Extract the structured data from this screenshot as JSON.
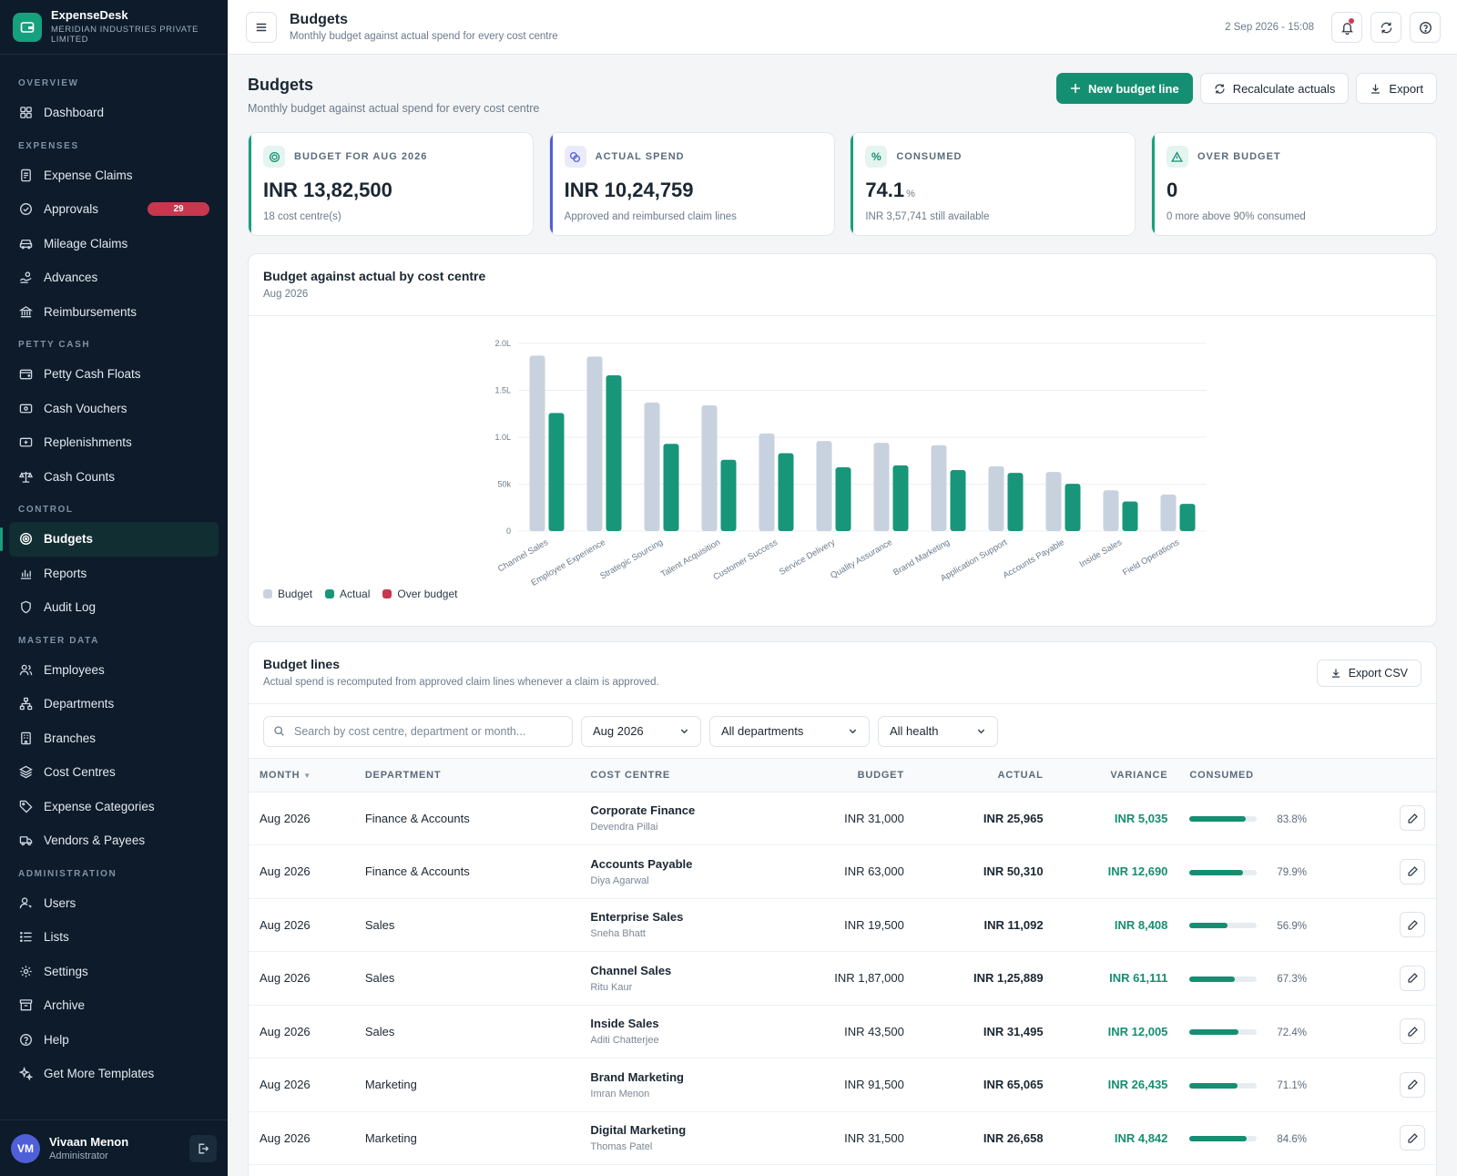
{
  "brand": {
    "name": "ExpenseDesk",
    "org": "Meridian Industries Private Limited"
  },
  "nav": {
    "sections": {
      "overview": "Overview",
      "expenses": "Expenses",
      "petty_cash": "Petty Cash",
      "control": "Control",
      "master_data": "Master Data",
      "administration": "Administration"
    },
    "items": {
      "dashboard": "Dashboard",
      "expense_claims": "Expense Claims",
      "approvals": "Approvals",
      "approvals_badge": "29",
      "mileage_claims": "Mileage Claims",
      "advances": "Advances",
      "reimbursements": "Reimbursements",
      "petty_cash_floats": "Petty Cash Floats",
      "cash_vouchers": "Cash Vouchers",
      "replenishments": "Replenishments",
      "cash_counts": "Cash Counts",
      "budgets": "Budgets",
      "reports": "Reports",
      "audit_log": "Audit Log",
      "employees": "Employees",
      "departments": "Departments",
      "branches": "Branches",
      "cost_centres": "Cost Centres",
      "expense_categories": "Expense Categories",
      "vendors_payees": "Vendors & Payees",
      "users": "Users",
      "lists": "Lists",
      "settings": "Settings",
      "archive": "Archive",
      "help": "Help",
      "get_more_templates": "Get More Templates"
    }
  },
  "user": {
    "initials": "VM",
    "name": "Vivaan Menon",
    "role": "Administrator"
  },
  "topbar": {
    "title": "Budgets",
    "subtitle": "Monthly budget against actual spend for every cost centre",
    "datetime": "2 Sep 2026 - 15:08"
  },
  "page": {
    "title": "Budgets",
    "subtitle": "Monthly budget against actual spend for every cost centre",
    "new_budget_line": "New budget line",
    "recalculate": "Recalculate actuals",
    "export": "Export"
  },
  "kpis": {
    "budget": {
      "label": "Budget for Aug 2026",
      "value": "INR 13,82,500",
      "note": "18 cost centre(s)"
    },
    "actual": {
      "label": "Actual spend",
      "value": "INR 10,24,759",
      "note": "Approved and reimbursed claim lines"
    },
    "consumed": {
      "label": "Consumed",
      "value": "74.1",
      "unit": "%",
      "note": "INR 3,57,741 still available"
    },
    "over": {
      "label": "Over budget",
      "value": "0",
      "note": "0 more above 90% consumed"
    }
  },
  "chart_card": {
    "title": "Budget against actual by cost centre",
    "subtitle": "Aug 2026"
  },
  "chart_data": {
    "type": "bar",
    "categories": [
      "Channel Sales",
      "Employee Experience",
      "Strategic Sourcing",
      "Talent Acquisition",
      "Customer Success",
      "Service Delivery",
      "Quality Assurance",
      "Brand Marketing",
      "Application Support",
      "Accounts Payable",
      "Inside Sales",
      "Field Operations"
    ],
    "series": [
      {
        "name": "Budget",
        "color": "#c8d2de",
        "values": [
          187000,
          186000,
          137000,
          134000,
          104000,
          96000,
          94000,
          91500,
          69000,
          63000,
          43500,
          39000
        ]
      },
      {
        "name": "Actual",
        "color": "#17967a",
        "values": [
          125889,
          166000,
          93000,
          76000,
          83000,
          68000,
          70000,
          65065,
          62000,
          50310,
          31495,
          29000
        ]
      }
    ],
    "legend": [
      {
        "name": "Budget",
        "color": "#c8d2de"
      },
      {
        "name": "Actual",
        "color": "#17967a"
      },
      {
        "name": "Over budget",
        "color": "#c8374d"
      }
    ],
    "yticks": [
      {
        "value": 0,
        "label": "0"
      },
      {
        "value": 50000,
        "label": "50k"
      },
      {
        "value": 100000,
        "label": "1.0L"
      },
      {
        "value": 150000,
        "label": "1.5L"
      },
      {
        "value": 200000,
        "label": "2.0L"
      }
    ],
    "ylim": [
      0,
      200000
    ],
    "grid": true,
    "legend_position": "bottom-left"
  },
  "table": {
    "title": "Budget lines",
    "subtitle": "Actual spend is recomputed from approved claim lines whenever a claim is approved.",
    "export_csv": "Export CSV",
    "search_placeholder": "Search by cost centre, department or month...",
    "filters": {
      "month": "Aug 2026",
      "department": "All departments",
      "health": "All health"
    },
    "columns": {
      "month": "MONTH",
      "department": "DEPARTMENT",
      "cost_centre": "COST CENTRE",
      "budget": "BUDGET",
      "actual": "ACTUAL",
      "variance": "VARIANCE",
      "consumed": "CONSUMED"
    },
    "rows": [
      {
        "month": "Aug 2026",
        "department": "Finance & Accounts",
        "cost_centre": "Corporate Finance",
        "owner": "Devendra Pillai",
        "budget": "INR 31,000",
        "actual": "INR 25,965",
        "variance": "INR 5,035",
        "consumed": "83.8%",
        "consumed_value": 83.8
      },
      {
        "month": "Aug 2026",
        "department": "Finance & Accounts",
        "cost_centre": "Accounts Payable",
        "owner": "Diya Agarwal",
        "budget": "INR 63,000",
        "actual": "INR 50,310",
        "variance": "INR 12,690",
        "consumed": "79.9%",
        "consumed_value": 79.9
      },
      {
        "month": "Aug 2026",
        "department": "Sales",
        "cost_centre": "Enterprise Sales",
        "owner": "Sneha Bhatt",
        "budget": "INR 19,500",
        "actual": "INR 11,092",
        "variance": "INR 8,408",
        "consumed": "56.9%",
        "consumed_value": 56.9
      },
      {
        "month": "Aug 2026",
        "department": "Sales",
        "cost_centre": "Channel Sales",
        "owner": "Ritu Kaur",
        "budget": "INR 1,87,000",
        "actual": "INR 1,25,889",
        "variance": "INR 61,111",
        "consumed": "67.3%",
        "consumed_value": 67.3
      },
      {
        "month": "Aug 2026",
        "department": "Sales",
        "cost_centre": "Inside Sales",
        "owner": "Aditi Chatterjee",
        "budget": "INR 43,500",
        "actual": "INR 31,495",
        "variance": "INR 12,005",
        "consumed": "72.4%",
        "consumed_value": 72.4
      },
      {
        "month": "Aug 2026",
        "department": "Marketing",
        "cost_centre": "Brand Marketing",
        "owner": "Imran Menon",
        "budget": "INR 91,500",
        "actual": "INR 65,065",
        "variance": "INR 26,435",
        "consumed": "71.1%",
        "consumed_value": 71.1
      },
      {
        "month": "Aug 2026",
        "department": "Marketing",
        "cost_centre": "Digital Marketing",
        "owner": "Thomas Patel",
        "budget": "INR 31,500",
        "actual": "INR 26,658",
        "variance": "INR 4,842",
        "consumed": "84.6%",
        "consumed_value": 84.6
      }
    ]
  }
}
